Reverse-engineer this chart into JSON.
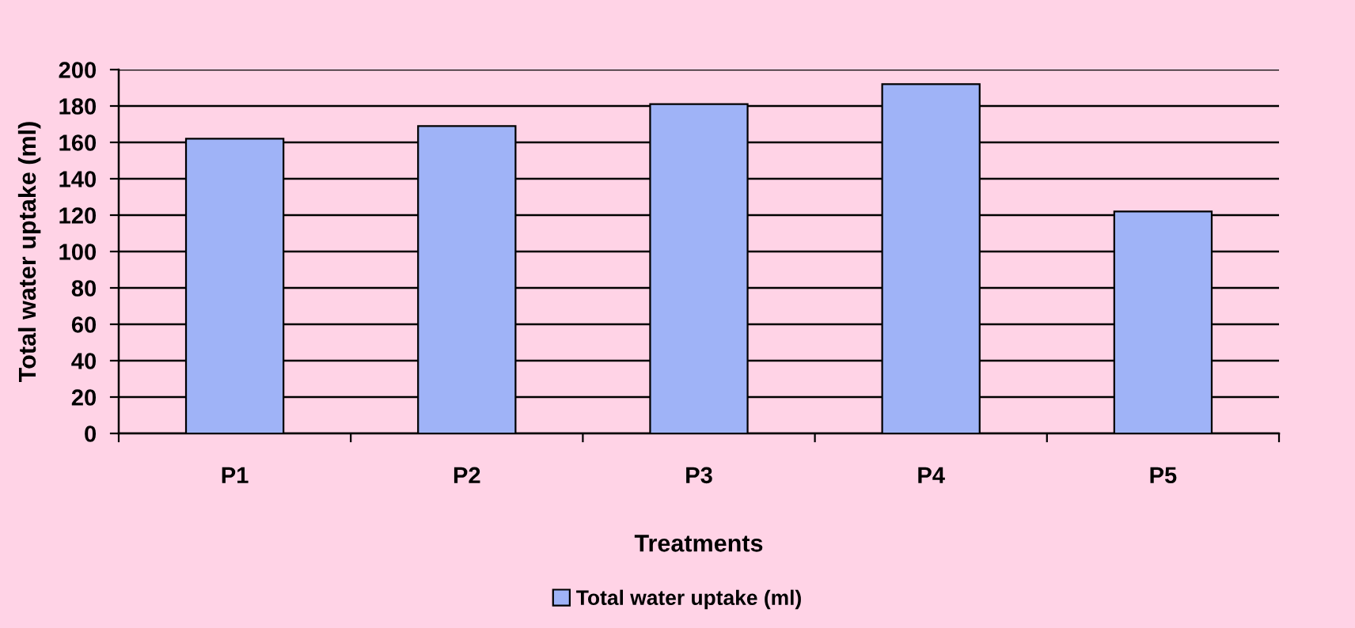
{
  "chart_data": {
    "type": "bar",
    "xlabel": "Treatments",
    "ylabel": "Total water uptake (ml)",
    "categories": [
      "P1",
      "P2",
      "P3",
      "P4",
      "P5"
    ],
    "series": [
      {
        "name": "Total water uptake (ml)",
        "color": "#9fb3f7",
        "values": [
          162,
          169,
          181,
          192,
          122
        ]
      }
    ],
    "ylim": [
      0,
      200
    ],
    "yticks": [
      0,
      20,
      40,
      60,
      80,
      100,
      120,
      140,
      160,
      180,
      200
    ],
    "grid": "y",
    "legend": "bottom"
  }
}
